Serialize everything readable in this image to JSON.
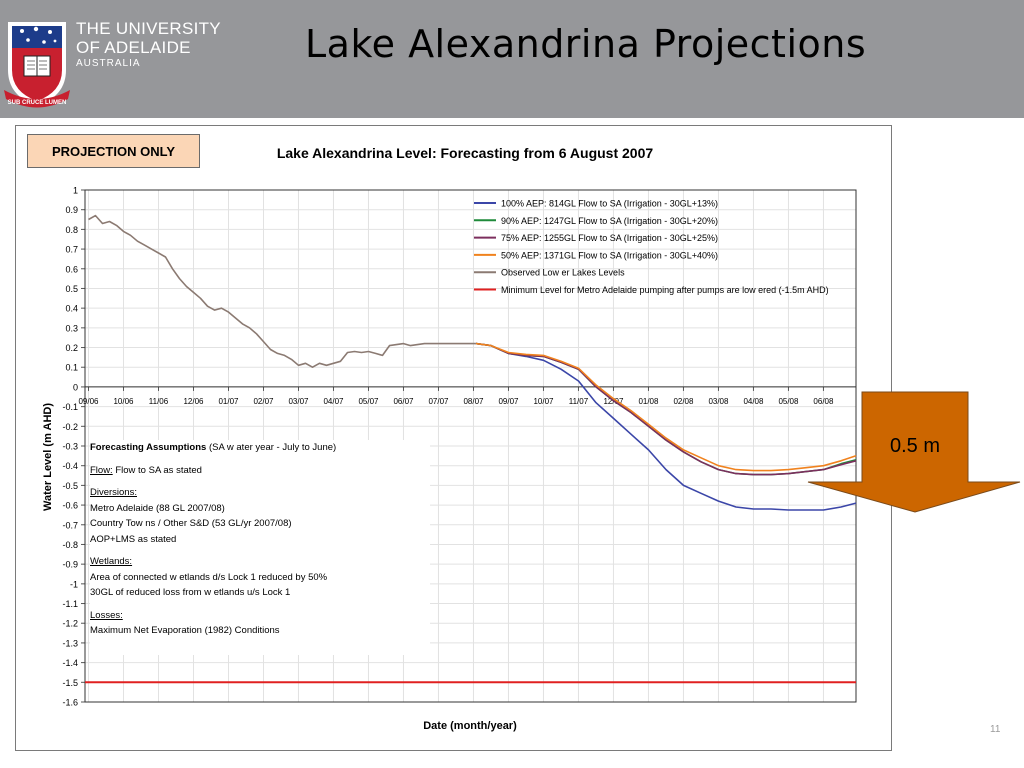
{
  "header": {
    "university_line1": "THE UNIVERSITY",
    "university_line2": "OF ADELAIDE",
    "university_line3": "AUSTRALIA",
    "motto": "SUB CRUCE LUMEN",
    "slide_title": "Lake Alexandrina Projections"
  },
  "projection_badge": "PROJECTION ONLY",
  "callout": {
    "label": "0.5 m",
    "color": "#cc6600"
  },
  "page_number": "11",
  "assumptions": {
    "title": "Forecasting Assumptions",
    "title_suffix": " (SA w ater year - July to June)",
    "flow_label": "Flow:",
    "flow_text": " Flow to SA as stated",
    "diversions_label": "Diversions:",
    "diversions": [
      "Metro Adelaide (88 GL 2007/08)",
      "Country Tow ns / Other S&D (53 GL/yr 2007/08)",
      "AOP+LMS as stated"
    ],
    "wetlands_label": "Wetlands:",
    "wetlands": [
      "Area of connected w etlands d/s Lock 1 reduced by 50%",
      "30GL of reduced loss from w etlands u/s Lock 1"
    ],
    "losses_label": "Losses:",
    "losses": [
      "Maximum Net Evaporation (1982) Conditions"
    ]
  },
  "chart_data": {
    "type": "line",
    "title": "Lake Alexandrina Level: Forecasting from 6 August 2007",
    "xlabel": "Date (month/year)",
    "ylabel": "Water Level (m AHD)",
    "ylim": [
      -1.6,
      1
    ],
    "yticks": [
      "1",
      "0.9",
      "0.8",
      "0.7",
      "0.6",
      "0.5",
      "0.4",
      "0.3",
      "0.2",
      "0.1",
      "0",
      "-0.1",
      "-0.2",
      "-0.3",
      "-0.4",
      "-0.5",
      "-0.6",
      "-0.7",
      "-0.8",
      "-0.9",
      "-1",
      "-1.1",
      "-1.2",
      "-1.3",
      "-1.4",
      "-1.5",
      "-1.6"
    ],
    "xticks": [
      "09/06",
      "10/06",
      "11/06",
      "12/06",
      "01/07",
      "02/07",
      "03/07",
      "04/07",
      "05/07",
      "06/07",
      "07/07",
      "08/07",
      "09/07",
      "10/07",
      "11/07",
      "12/07",
      "01/08",
      "02/08",
      "03/08",
      "04/08",
      "05/08",
      "06/08"
    ],
    "grid": true,
    "legend_position": "top-right",
    "series": [
      {
        "name": "100% AEP: 814GL Flow to SA (Irrigation - 30GL+13%)",
        "color": "#3b46a8",
        "x": [
          11.07,
          11.5,
          12.0,
          12.5,
          13.0,
          13.5,
          14.0,
          14.5,
          15.0,
          15.5,
          16.0,
          16.5,
          17.0,
          17.5,
          18.0,
          18.5,
          19.0,
          19.5,
          20.0,
          20.5,
          21.0,
          21.5,
          21.93
        ],
        "y": [
          0.22,
          0.21,
          0.17,
          0.155,
          0.135,
          0.09,
          0.03,
          -0.08,
          -0.16,
          -0.24,
          -0.32,
          -0.42,
          -0.5,
          -0.54,
          -0.58,
          -0.61,
          -0.62,
          -0.62,
          -0.625,
          -0.625,
          -0.625,
          -0.61,
          -0.59
        ]
      },
      {
        "name": "90% AEP: 1247GL Flow to SA (Irrigation - 30GL+20%)",
        "color": "#1f8a3a",
        "x": [
          11.07,
          11.5,
          12.0,
          12.5,
          13.0,
          13.5,
          14.0,
          14.5,
          15.0,
          15.5,
          16.0,
          16.5,
          17.0,
          17.5,
          18.0,
          18.5,
          19.0,
          19.5,
          20.0,
          20.5,
          21.0,
          21.5,
          21.93
        ],
        "y": [
          0.22,
          0.21,
          0.17,
          0.16,
          0.155,
          0.125,
          0.09,
          0.0,
          -0.07,
          -0.13,
          -0.2,
          -0.27,
          -0.33,
          -0.38,
          -0.42,
          -0.44,
          -0.445,
          -0.445,
          -0.44,
          -0.43,
          -0.42,
          -0.39,
          -0.37
        ]
      },
      {
        "name": "75% AEP: 1255GL Flow to SA (Irrigation - 30GL+25%)",
        "color": "#7c2f5e",
        "x": [
          11.07,
          11.5,
          12.0,
          12.5,
          13.0,
          13.5,
          14.0,
          14.5,
          15.0,
          15.5,
          16.0,
          16.5,
          17.0,
          17.5,
          18.0,
          18.5,
          19.0,
          19.5,
          20.0,
          20.5,
          21.0,
          21.5,
          21.93
        ],
        "y": [
          0.22,
          0.21,
          0.17,
          0.16,
          0.155,
          0.125,
          0.09,
          0.0,
          -0.07,
          -0.13,
          -0.2,
          -0.27,
          -0.33,
          -0.38,
          -0.42,
          -0.44,
          -0.445,
          -0.445,
          -0.44,
          -0.43,
          -0.42,
          -0.395,
          -0.375
        ]
      },
      {
        "name": "50% AEP: 1371GL Flow to SA (Irrigation - 30GL+40%)",
        "color": "#f0821e",
        "x": [
          11.07,
          11.5,
          12.0,
          12.5,
          13.0,
          13.5,
          14.0,
          14.5,
          15.0,
          15.5,
          16.0,
          16.5,
          17.0,
          17.5,
          18.0,
          18.5,
          19.0,
          19.5,
          20.0,
          20.5,
          21.0,
          21.5,
          21.93
        ],
        "y": [
          0.22,
          0.21,
          0.175,
          0.165,
          0.16,
          0.13,
          0.095,
          0.01,
          -0.06,
          -0.12,
          -0.19,
          -0.26,
          -0.32,
          -0.36,
          -0.4,
          -0.42,
          -0.425,
          -0.425,
          -0.42,
          -0.41,
          -0.4,
          -0.375,
          -0.35
        ]
      },
      {
        "name": "Observed Low er Lakes Levels",
        "color": "#8b7a72",
        "x": [
          0.0,
          0.2,
          0.4,
          0.6,
          0.8,
          1.0,
          1.2,
          1.4,
          1.6,
          1.8,
          2.0,
          2.2,
          2.4,
          2.6,
          2.8,
          3.0,
          3.2,
          3.4,
          3.6,
          3.8,
          4.0,
          4.2,
          4.4,
          4.6,
          4.8,
          5.0,
          5.2,
          5.4,
          5.6,
          5.8,
          6.0,
          6.2,
          6.4,
          6.6,
          6.8,
          7.0,
          7.2,
          7.4,
          7.6,
          7.8,
          8.0,
          8.2,
          8.4,
          8.6,
          8.8,
          9.0,
          9.2,
          9.4,
          9.6,
          9.8,
          10.0,
          10.2,
          10.4,
          10.6,
          10.8,
          11.07
        ],
        "y": [
          0.85,
          0.87,
          0.83,
          0.84,
          0.82,
          0.79,
          0.77,
          0.74,
          0.72,
          0.7,
          0.68,
          0.66,
          0.6,
          0.55,
          0.51,
          0.48,
          0.45,
          0.41,
          0.39,
          0.4,
          0.38,
          0.35,
          0.32,
          0.3,
          0.27,
          0.23,
          0.19,
          0.17,
          0.16,
          0.14,
          0.11,
          0.12,
          0.1,
          0.12,
          0.11,
          0.12,
          0.13,
          0.175,
          0.18,
          0.175,
          0.18,
          0.17,
          0.16,
          0.21,
          0.215,
          0.22,
          0.21,
          0.215,
          0.22,
          0.22,
          0.22,
          0.22,
          0.22,
          0.22,
          0.22,
          0.22
        ]
      },
      {
        "name": "Minimum Level for Metro Adelaide pumping after pumps are low ered (-1.5m AHD)",
        "color": "#e02020",
        "x": [
          -0.1,
          21.93
        ],
        "y": [
          -1.5,
          -1.5
        ]
      }
    ]
  }
}
